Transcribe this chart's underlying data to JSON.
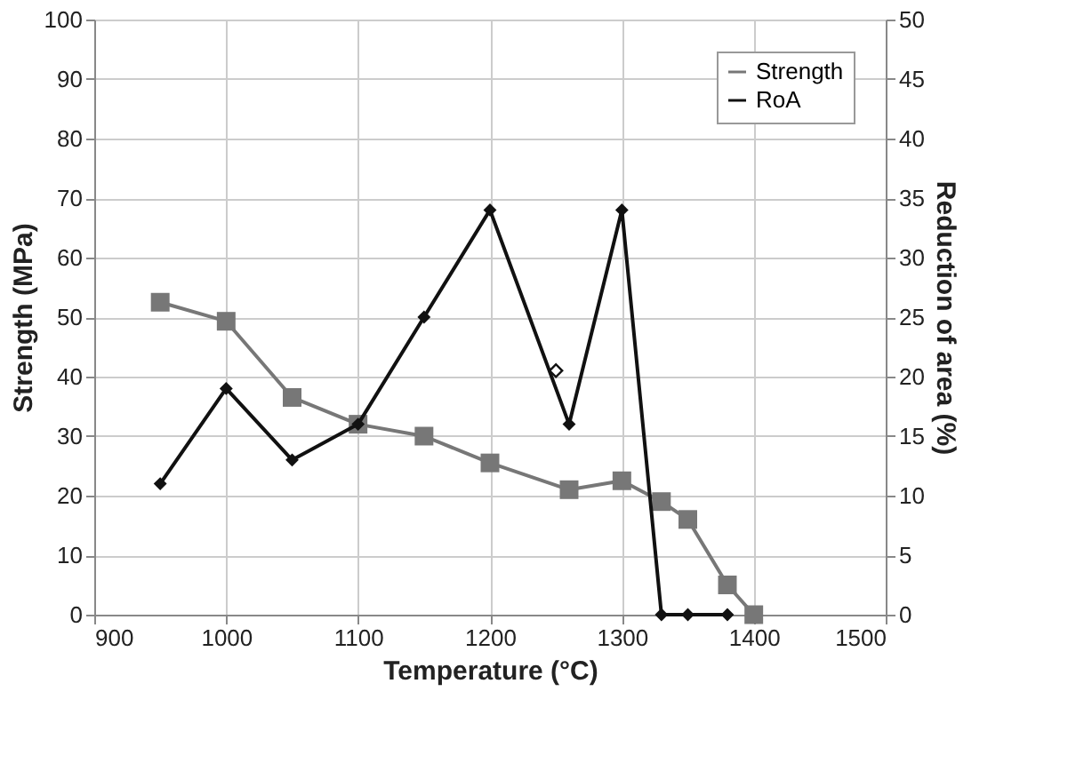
{
  "chart_data": {
    "type": "line",
    "xlabel": "Temperature (°C)",
    "ylabel": "Strength (MPa)",
    "y2label": "Reduction of area (%)",
    "xlim": [
      900,
      1500
    ],
    "xticks": [
      900,
      1000,
      1100,
      1200,
      1300,
      1400,
      1500
    ],
    "ylim": [
      0,
      100
    ],
    "yticks": [
      0,
      10,
      20,
      30,
      40,
      50,
      60,
      70,
      80,
      90,
      100
    ],
    "y2lim": [
      0,
      50
    ],
    "y2ticks": [
      0,
      5,
      10,
      15,
      20,
      25,
      30,
      35,
      40,
      45,
      50
    ],
    "grid": true,
    "legend": "top right",
    "line_style": "solid",
    "series": [
      {
        "name": "Strength",
        "color": "#777777",
        "marker": "square",
        "x": [
          950,
          1000,
          1050,
          1100,
          1150,
          1200,
          1260,
          1300,
          1330,
          1350,
          1380,
          1400
        ],
        "values": [
          52.5,
          49.3,
          36.5,
          32,
          30,
          25.5,
          21,
          22.5,
          19,
          16,
          5,
          0
        ]
      },
      {
        "name": "RoA",
        "color": "#111111",
        "marker": "diamond",
        "axis": "y2",
        "x": [
          950,
          1000,
          1050,
          1100,
          1150,
          1200,
          1260,
          1300,
          1330,
          1350,
          1380
        ],
        "values": [
          11,
          19,
          13,
          16,
          25,
          34,
          16,
          34,
          0,
          0,
          0
        ]
      },
      {
        "type": "scatter",
        "color": "#111111",
        "marker": "diamond",
        "axis": "y2",
        "x": [
          1250
        ],
        "values": [
          20.5
        ]
      }
    ]
  }
}
